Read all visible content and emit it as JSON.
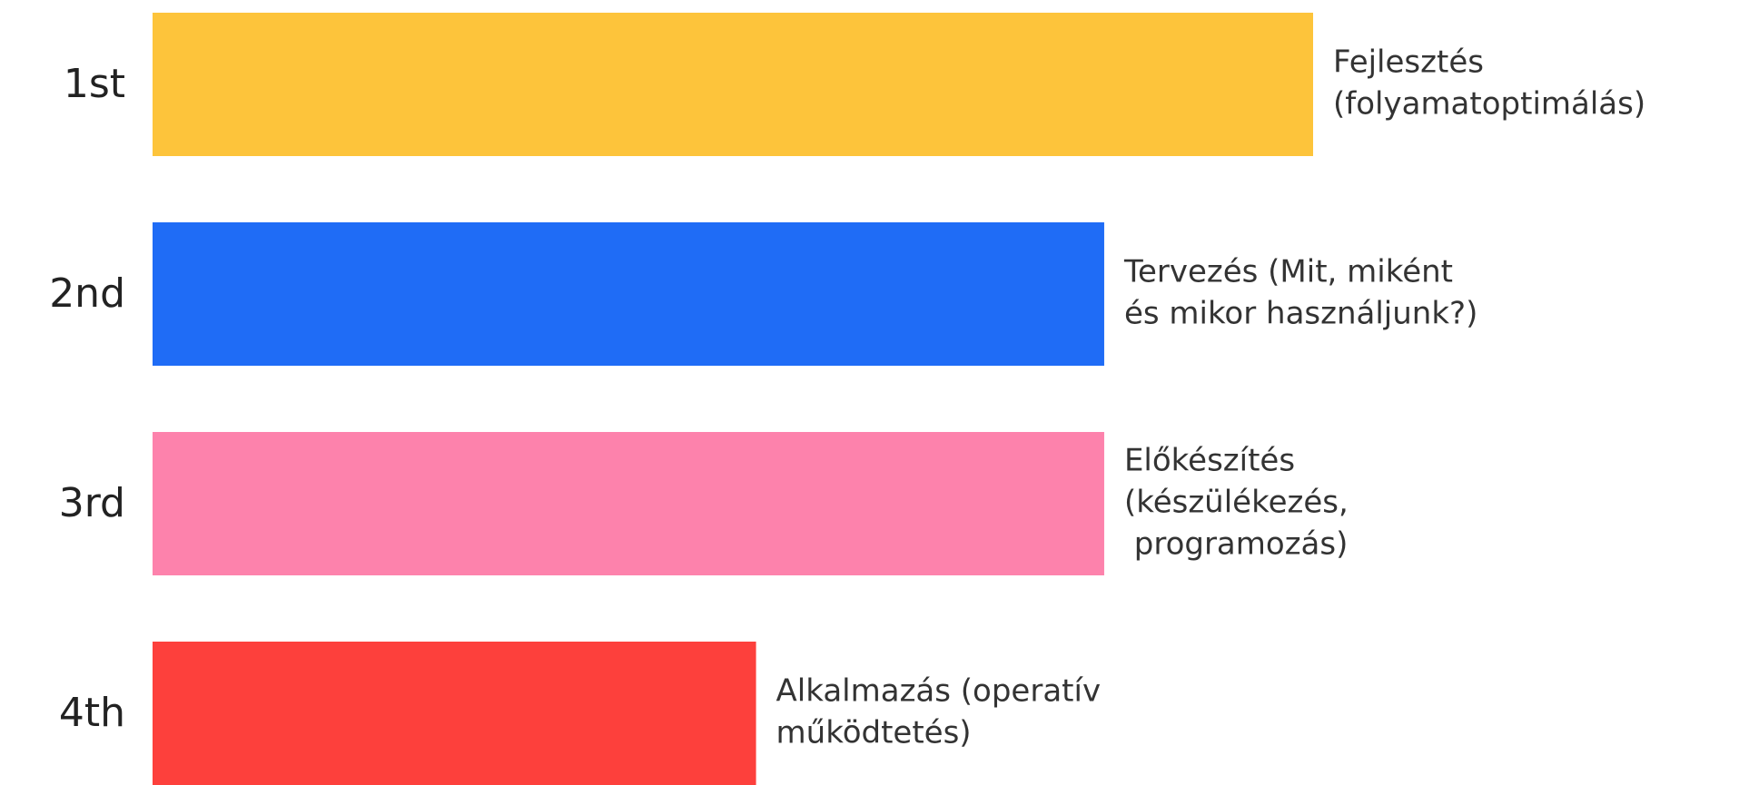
{
  "chart_data": {
    "type": "bar",
    "categories": [
      "1st",
      "2nd",
      "3rd",
      "4th"
    ],
    "labels": [
      [
        "Fejlesztés",
        "(folyamatoptimálás)"
      ],
      [
        "Tervezés (Mit, miként",
        "és mikor használjunk?)"
      ],
      [
        "Előkészítés",
        "(készülékezés,",
        " programozás)"
      ],
      [
        "Alkalmazás (operatív",
        "működtetés)"
      ]
    ],
    "values": [
      100,
      82,
      82,
      52
    ],
    "colors": [
      "#fdc43b",
      "#1f6cf6",
      "#fd82ac",
      "#fd403c"
    ],
    "xlim": [
      0,
      100
    ]
  }
}
